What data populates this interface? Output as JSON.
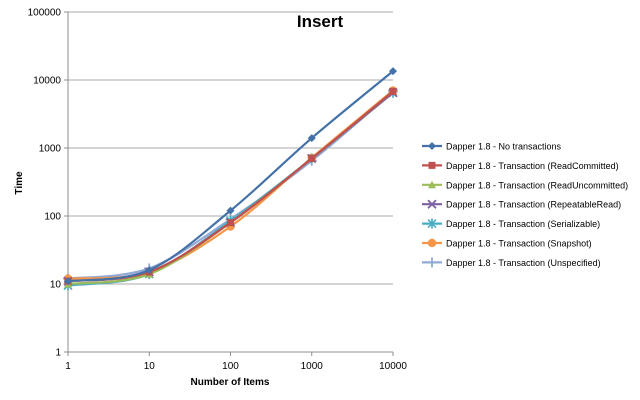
{
  "chart_data": {
    "type": "line",
    "title": "Insert",
    "xlabel": "Number of Items",
    "ylabel": "Time",
    "x_scale": "log",
    "y_scale": "log",
    "xlim": [
      1,
      10000
    ],
    "ylim": [
      1,
      100000
    ],
    "x_ticks": [
      "1",
      "10",
      "100",
      "1000",
      "10000"
    ],
    "y_ticks": [
      "1",
      "10",
      "100",
      "1000",
      "10000",
      "100000"
    ],
    "grid": "horizontal",
    "legend": "right",
    "x": [
      1,
      10,
      100,
      1000,
      10000
    ],
    "series": [
      {
        "name": "Dapper 1.8 - No transactions",
        "values": [
          11,
          16,
          120,
          1400,
          13500
        ],
        "color": "#4472A8",
        "marker": "diamond"
      },
      {
        "name": "Dapper 1.8 - Transaction (ReadCommitted)",
        "values": [
          11,
          15,
          80,
          700,
          6800
        ],
        "color": "#C0504D",
        "marker": "square"
      },
      {
        "name": "Dapper 1.8 - Transaction (ReadUncommitted)",
        "values": [
          10,
          14,
          80,
          700,
          6800
        ],
        "color": "#9BBB59",
        "marker": "triangle"
      },
      {
        "name": "Dapper 1.8 - Transaction (RepeatableRead)",
        "values": [
          11,
          15,
          80,
          700,
          6500
        ],
        "color": "#7D5FA0",
        "marker": "x"
      },
      {
        "name": "Dapper 1.8 - Transaction (Serializable)",
        "values": [
          9.5,
          14,
          85,
          700,
          6500
        ],
        "color": "#4BACC6",
        "marker": "star"
      },
      {
        "name": "Dapper 1.8 - Transaction (Snapshot)",
        "values": [
          12,
          15,
          70,
          720,
          7000
        ],
        "color": "#F79646",
        "marker": "circle"
      },
      {
        "name": "Dapper 1.8 - Transaction (Unspecified)",
        "values": [
          12,
          17,
          90,
          650,
          6800
        ],
        "color": "#92A9D6",
        "marker": "plus"
      }
    ]
  }
}
